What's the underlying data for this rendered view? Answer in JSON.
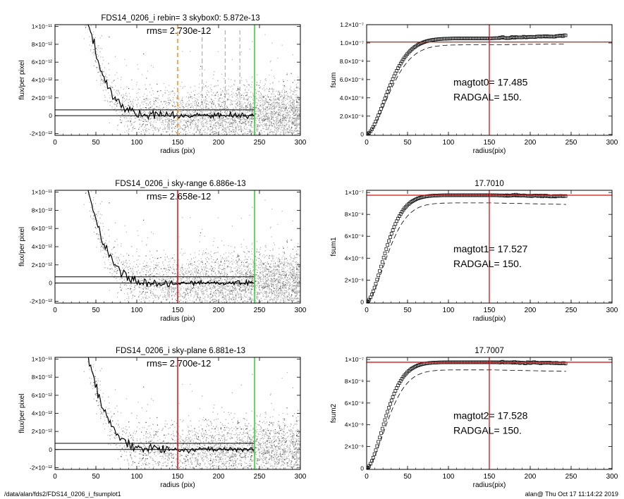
{
  "footer": {
    "path": "/data/alan/fds2/FDS14_0206_i_fsumplot1",
    "stamp": "alan@  Thu Oct 17 11:14:22 2019"
  },
  "colors": {
    "points": "#b4b4b4",
    "profile": "#000000",
    "orange_marker": "#ff8c1a",
    "red_marker": "#dd1111",
    "green_marker": "#33cc33",
    "curve": "#000000"
  },
  "chart_data": [
    {
      "type": "scatter",
      "title": "FDS14_0206_i rebin= 3    skybox0:  5.872e-13",
      "annotation": "rms= 2.730e-12",
      "xlabel": "radius (pix)",
      "ylabel": "flux/per pixel",
      "xlim": [
        0,
        300
      ],
      "ylim": [
        -2.2e-12,
        1.02e-11
      ],
      "xticks": [
        0,
        50,
        100,
        150,
        200,
        250,
        300
      ],
      "yticks": [
        -2e-12,
        0,
        2e-12,
        4e-12,
        6e-12,
        8e-12,
        1e-11
      ],
      "ytick_labels": [
        "-2×10⁻¹²",
        "0",
        "2×10⁻¹²",
        "4×10⁻¹²",
        "6×10⁻¹²",
        "8×10⁻¹²",
        "1×10⁻¹¹"
      ],
      "hlines": [
        0,
        6.5e-13
      ],
      "vlines": [
        {
          "x": 150,
          "color": "#ff8c1a",
          "style": "dashed"
        },
        {
          "x": 180,
          "color": "#888888",
          "style": "dashed",
          "partial": true
        },
        {
          "x": 208,
          "color": "#888888",
          "style": "dashed",
          "partial": true
        },
        {
          "x": 226,
          "color": "#888888",
          "style": "dashed",
          "partial": true
        },
        {
          "x": 244,
          "color": "#33cc33",
          "style": "solid"
        }
      ],
      "profile": [
        [
          40,
          1.02e-11
        ],
        [
          45,
          8.8e-12
        ],
        [
          50,
          7e-12
        ],
        [
          55,
          5.4e-12
        ],
        [
          60,
          4.2e-12
        ],
        [
          65,
          3.3e-12
        ],
        [
          70,
          2.5e-12
        ],
        [
          75,
          1.9e-12
        ],
        [
          80,
          1.3e-12
        ],
        [
          85,
          9e-13
        ],
        [
          90,
          6e-13
        ],
        [
          95,
          4e-13
        ],
        [
          100,
          2.5e-13
        ],
        [
          110,
          1.2e-13
        ],
        [
          120,
          6e-14
        ],
        [
          130,
          3e-14
        ],
        [
          150,
          1e-14
        ],
        [
          180,
          0
        ],
        [
          244,
          0
        ]
      ],
      "note": "Scatter cloud represents individual pixel flux values around the radial profile"
    },
    {
      "type": "line",
      "title": "",
      "annotation_lines": [
        "magtot0=  17.485",
        "RADGAL=    150."
      ],
      "xlabel": "radius(pix)",
      "ylabel": "fsum",
      "xlim": [
        0,
        300
      ],
      "ylim": [
        -1e-09,
        1.2e-07
      ],
      "xticks": [
        0,
        50,
        100,
        150,
        200,
        250,
        300
      ],
      "yticks": [
        0,
        2e-08,
        4e-08,
        6e-08,
        8e-08,
        1e-07,
        1.2e-07
      ],
      "ytick_labels": [
        "0",
        "2.0×10⁻⁸",
        "4.0×10⁻⁸",
        "6.0×10⁻⁸",
        "8.0×10⁻⁸",
        "1.0×10⁻⁷",
        "1.2×10⁻⁷"
      ],
      "hline": 1.01e-07,
      "vline": 150,
      "curve": {
        "final": 1.05e-07,
        "scale": 35,
        "xmax": 244,
        "tail_slope": 3e-11
      },
      "dashed": {
        "final": 9.8e-08,
        "scale": 37,
        "xmax": 244,
        "tail_slope": 1e-11
      }
    },
    {
      "type": "scatter",
      "title": "FDS14_0206_i sky-range  6.886e-13",
      "annotation": "rms= 2.658e-12",
      "xlabel": "radius (pix)",
      "ylabel": "flux/per pixel",
      "xlim": [
        0,
        300
      ],
      "ylim": [
        -2.2e-12,
        1.02e-11
      ],
      "xticks": [
        0,
        50,
        100,
        150,
        200,
        250,
        300
      ],
      "yticks": [
        -2e-12,
        0,
        2e-12,
        4e-12,
        6e-12,
        8e-12,
        1e-11
      ],
      "ytick_labels": [
        "-2×10⁻¹²",
        "0",
        "2×10⁻¹²",
        "4×10⁻¹²",
        "6×10⁻¹²",
        "8×10⁻¹²",
        "1×10⁻¹¹"
      ],
      "hlines": [
        0,
        6.9e-13
      ],
      "vlines": [
        {
          "x": 150,
          "color": "#dd1111",
          "style": "solid"
        },
        {
          "x": 244,
          "color": "#33cc33",
          "style": "solid"
        }
      ],
      "profile": [
        [
          40,
          1.02e-11
        ],
        [
          45,
          8.8e-12
        ],
        [
          50,
          7e-12
        ],
        [
          55,
          5.4e-12
        ],
        [
          60,
          4.2e-12
        ],
        [
          65,
          3.3e-12
        ],
        [
          70,
          2.5e-12
        ],
        [
          75,
          1.9e-12
        ],
        [
          80,
          1.3e-12
        ],
        [
          85,
          9e-13
        ],
        [
          90,
          6e-13
        ],
        [
          95,
          4e-13
        ],
        [
          100,
          2.5e-13
        ],
        [
          110,
          1.2e-13
        ],
        [
          120,
          6e-14
        ],
        [
          130,
          3e-14
        ],
        [
          150,
          1e-14
        ],
        [
          180,
          0
        ],
        [
          244,
          0
        ]
      ]
    },
    {
      "type": "line",
      "title": "17.7010",
      "annotation_lines": [
        "magtot1=  17.527",
        "RADGAL=    150."
      ],
      "xlabel": "radius(pix)",
      "ylabel": "fsum1",
      "xlim": [
        0,
        300
      ],
      "ylim": [
        -1e-09,
        1.02e-07
      ],
      "xticks": [
        0,
        50,
        100,
        150,
        200,
        250,
        300
      ],
      "yticks": [
        0,
        2e-08,
        4e-08,
        6e-08,
        8e-08,
        1e-07
      ],
      "ytick_labels": [
        "0",
        "2×10⁻⁸",
        "4×10⁻⁸",
        "6×10⁻⁸",
        "8×10⁻⁸",
        "1×10⁻⁷"
      ],
      "hline": 9.75e-08,
      "vline": 150,
      "curve": {
        "final": 9.75e-08,
        "scale": 30,
        "xmax": 244,
        "tail_slope": -1e-11
      },
      "dashed": {
        "final": 9.05e-08,
        "scale": 33,
        "xmax": 244,
        "tail_slope": -1.5e-11
      }
    },
    {
      "type": "scatter",
      "title": "FDS14_0206_i sky-plane  6.881e-13",
      "annotation": "rms= 2.700e-12",
      "xlabel": "radius (pix)",
      "ylabel": "flux/per pixel",
      "xlim": [
        0,
        300
      ],
      "ylim": [
        -2.2e-12,
        1.02e-11
      ],
      "xticks": [
        0,
        50,
        100,
        150,
        200,
        250,
        300
      ],
      "yticks": [
        -2e-12,
        0,
        2e-12,
        4e-12,
        6e-12,
        8e-12,
        1e-11
      ],
      "ytick_labels": [
        "-2×10⁻¹²",
        "0",
        "2×10⁻¹²",
        "4×10⁻¹²",
        "6×10⁻¹²",
        "8×10⁻¹²",
        "1×10⁻¹¹"
      ],
      "hlines": [
        0,
        6.9e-13
      ],
      "vlines": [
        {
          "x": 150,
          "color": "#dd1111",
          "style": "solid"
        },
        {
          "x": 244,
          "color": "#33cc33",
          "style": "solid"
        }
      ],
      "profile": [
        [
          40,
          1.02e-11
        ],
        [
          45,
          8.8e-12
        ],
        [
          50,
          7e-12
        ],
        [
          55,
          5.4e-12
        ],
        [
          60,
          4.2e-12
        ],
        [
          65,
          3.3e-12
        ],
        [
          70,
          2.5e-12
        ],
        [
          75,
          1.9e-12
        ],
        [
          80,
          1.3e-12
        ],
        [
          85,
          9e-13
        ],
        [
          90,
          6e-13
        ],
        [
          95,
          4e-13
        ],
        [
          100,
          2.5e-13
        ],
        [
          110,
          1.2e-13
        ],
        [
          120,
          6e-14
        ],
        [
          130,
          3e-14
        ],
        [
          150,
          1e-14
        ],
        [
          180,
          0
        ],
        [
          244,
          0
        ]
      ]
    },
    {
      "type": "line",
      "title": "17.7007",
      "annotation_lines": [
        "magtot2= 17.528",
        "RADGAL=    150."
      ],
      "xlabel": "radius(pix)",
      "ylabel": "fsum2",
      "xlim": [
        0,
        300
      ],
      "ylim": [
        -1e-09,
        1.02e-07
      ],
      "xticks": [
        0,
        50,
        100,
        150,
        200,
        250,
        300
      ],
      "yticks": [
        0,
        2e-08,
        4e-08,
        6e-08,
        8e-08,
        1e-07
      ],
      "ytick_labels": [
        "0",
        "2×10⁻⁸",
        "4×10⁻⁸",
        "6×10⁻⁸",
        "8×10⁻⁸",
        "1×10⁻⁷"
      ],
      "hline": 9.75e-08,
      "vline": 150,
      "curve": {
        "final": 9.75e-08,
        "scale": 30,
        "xmax": 244,
        "tail_slope": -1e-11
      },
      "dashed": {
        "final": 9.05e-08,
        "scale": 33,
        "xmax": 244,
        "tail_slope": -1.5e-11
      }
    }
  ]
}
